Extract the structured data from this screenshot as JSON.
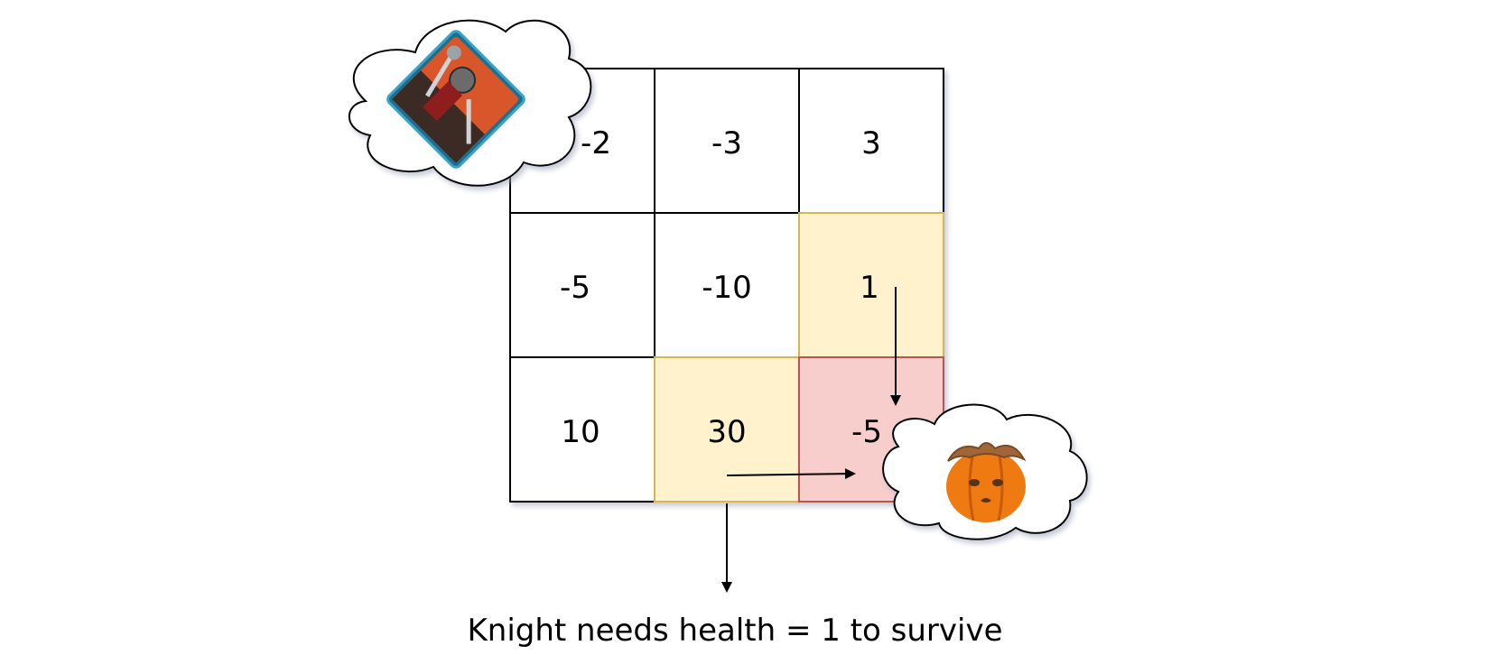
{
  "grid": {
    "rows": [
      [
        "-2",
        "-3",
        "3"
      ],
      [
        "-5",
        "-10",
        "1"
      ],
      [
        "10",
        "30",
        "-5"
      ]
    ],
    "highlight_colors": {
      "path": "#fff2cc",
      "princess": "#f8cecc",
      "path_border": "#d6b656",
      "princess_border": "#b85450"
    }
  },
  "caption": "Knight needs health = 1 to survive",
  "icons": {
    "knight": "knight-avatar-icon",
    "princess": "pumpkin-princess-icon"
  }
}
